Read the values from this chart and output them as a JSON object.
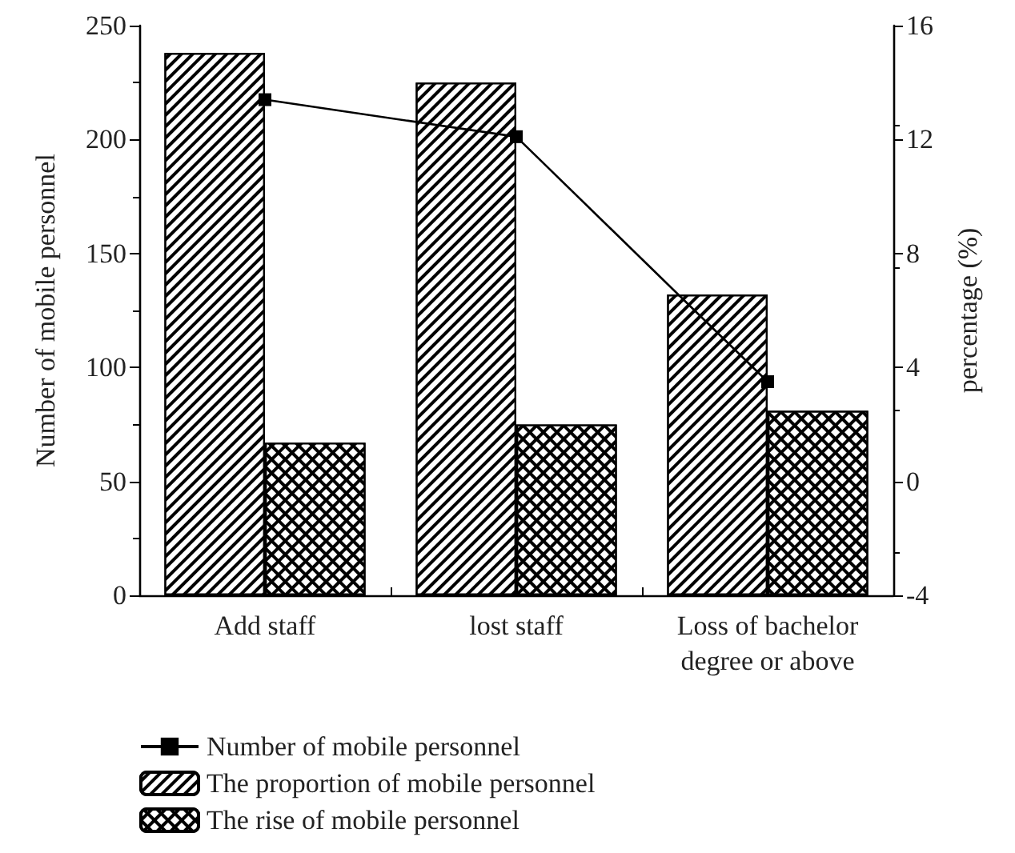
{
  "chart_data": {
    "type": "bar",
    "ylabel": "Number of mobile personnel",
    "y2label": "percentage (%)",
    "categories": [
      "Add staff",
      "lost staff",
      "Loss of bachelor\ndegree or above"
    ],
    "series": [
      {
        "name": "Number of mobile personnel",
        "type": "line",
        "axis": "y2",
        "color": "#000000",
        "marker": "square",
        "values": [
          13.4,
          12.1,
          3.5
        ]
      },
      {
        "name": "The proportion of mobile personnel",
        "color": "#000000",
        "values": [
          238,
          225,
          132
        ]
      },
      {
        "name": "The rise of mobile personnel",
        "color": "#000000",
        "values": [
          67,
          75,
          81
        ]
      }
    ],
    "ylim": [
      0,
      250
    ],
    "yticks": [
      0,
      50,
      100,
      150,
      200,
      250
    ],
    "y2lim": [
      -4,
      16
    ],
    "y2ticks": [
      -4,
      0,
      4,
      8,
      12,
      16
    ],
    "grid": false,
    "legend": "bottom left"
  }
}
